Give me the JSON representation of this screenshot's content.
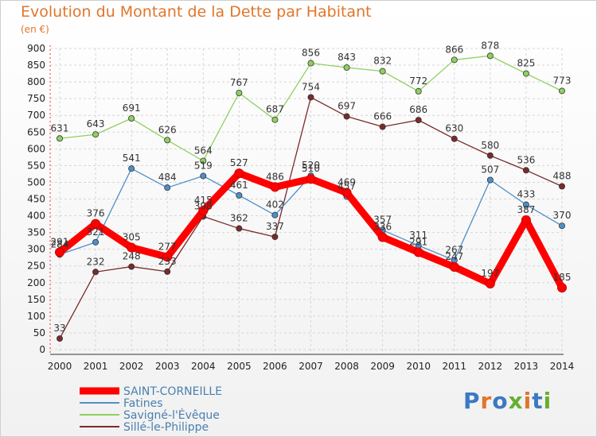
{
  "title": "Evolution du Montant de la Dette par Habitant",
  "unit": "(en €)",
  "logo": {
    "letters": [
      "P",
      "r",
      "o",
      "x",
      "i",
      "t",
      "i"
    ],
    "colors": [
      "#3b79c2",
      "#e0762c",
      "#3b79c2",
      "#63b030",
      "#e0762c",
      "#3b79c2",
      "#63b030"
    ]
  },
  "chart_data": {
    "type": "line",
    "title": "Evolution du Montant de la Dette par Habitant",
    "ylabel": "(en €)",
    "xlabel": "",
    "x": [
      "2000",
      "2001",
      "2002",
      "2003",
      "2004",
      "2005",
      "2006",
      "2007",
      "2008",
      "2009",
      "2010",
      "2011",
      "2012",
      "2013",
      "2014"
    ],
    "ylim": [
      0,
      900
    ],
    "yticks": [
      "0",
      "50",
      "100",
      "150",
      "200",
      "250",
      "300",
      "350",
      "400",
      "450",
      "500",
      "550",
      "600",
      "650",
      "700",
      "750",
      "800",
      "850",
      "900"
    ],
    "grid": true,
    "legend": "bottom-left",
    "series": [
      {
        "name": "SAINT-CORNEILLE",
        "color": "#ff0000",
        "values": [
          291,
          376,
          305,
          277,
          415,
          527,
          486,
          510,
          469,
          336,
          291,
          247,
          197,
          387,
          185
        ],
        "labels": [
          "291",
          "376",
          "305",
          "277",
          "415",
          "527",
          "486",
          "510",
          "469",
          "336",
          "291",
          "247",
          "197",
          "387",
          "185"
        ]
      },
      {
        "name": "Fatines",
        "color": "#4f8fc9",
        "values": [
          284,
          321,
          541,
          484,
          519,
          461,
          402,
          520,
          457,
          357,
          311,
          267,
          507,
          433,
          370
        ],
        "labels": [
          "284",
          "321",
          "541",
          "484",
          "519",
          "461",
          "402",
          "520",
          "457",
          "357",
          "311",
          "267",
          "507",
          "433",
          "370"
        ]
      },
      {
        "name": "Savigné-l'Évêque",
        "color": "#8fd060",
        "values": [
          631,
          643,
          691,
          626,
          564,
          767,
          687,
          856,
          843,
          832,
          772,
          866,
          878,
          825,
          773
        ],
        "labels": [
          "631",
          "643",
          "691",
          "626",
          "564",
          "767",
          "687",
          "856",
          "843",
          "832",
          "772",
          "866",
          "878",
          "825",
          "773"
        ]
      },
      {
        "name": "Sillé-le-Philippe",
        "color": "#7b2a2a",
        "values": [
          33,
          232,
          248,
          233,
          398,
          362,
          337,
          754,
          697,
          666,
          686,
          630,
          580,
          536,
          488
        ],
        "labels": [
          "33",
          "232",
          "248",
          "233",
          "398",
          "362",
          "337",
          "754",
          "697",
          "666",
          "686",
          "630",
          "580",
          "536",
          "488"
        ]
      }
    ]
  }
}
